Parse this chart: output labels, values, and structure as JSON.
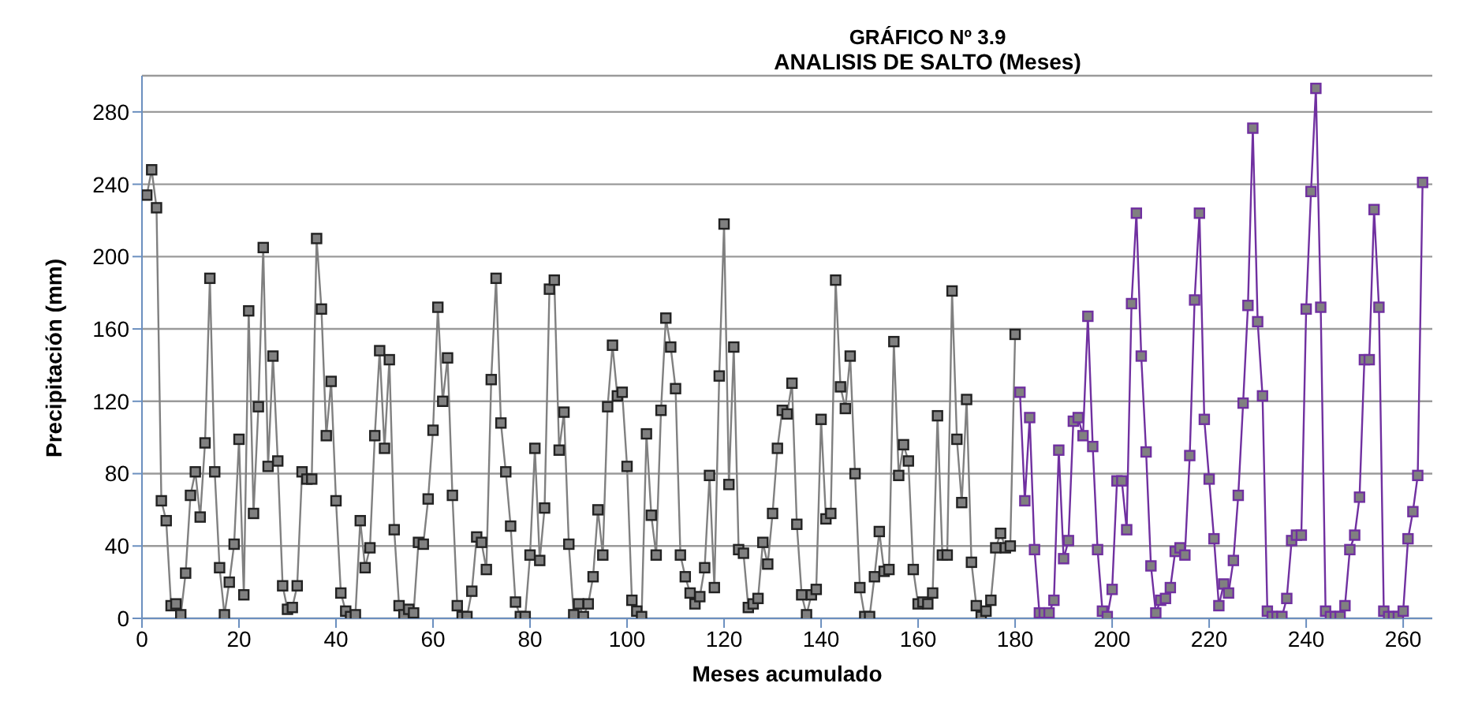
{
  "chart_data": {
    "type": "line",
    "title": "GRÁFICO  Nº 3.9",
    "subtitle": "ANALISIS DE SALTO (Meses)",
    "xlabel": "Meses acumulado",
    "ylabel": "Precipitación (mm)",
    "xlim": [
      0,
      266
    ],
    "xticks": [
      0,
      20,
      40,
      60,
      80,
      100,
      120,
      140,
      160,
      180,
      200,
      220,
      240,
      260
    ],
    "ylim": [
      0,
      300
    ],
    "yticks": [
      0,
      40,
      80,
      120,
      160,
      200,
      240,
      280
    ],
    "grid": "y",
    "marker": "square",
    "line_style": "solid",
    "series": [
      {
        "color": "#808080",
        "x": [
          1,
          2,
          3,
          4,
          5,
          6,
          7,
          8,
          9,
          10,
          11,
          12,
          13,
          14,
          15,
          16,
          17,
          18,
          19,
          20,
          21,
          22,
          23,
          24,
          25,
          26,
          27,
          28,
          29,
          30,
          31,
          32,
          33,
          34,
          35,
          36,
          37,
          38,
          39,
          40,
          41,
          42,
          43,
          44,
          45,
          46,
          47,
          48,
          49,
          50,
          51,
          52,
          53,
          54,
          55,
          56,
          57,
          58,
          59,
          60,
          61,
          62,
          63,
          64,
          65,
          66,
          67,
          68,
          69,
          70,
          71,
          72,
          73,
          74,
          75,
          76,
          77,
          78,
          79,
          80,
          81,
          82,
          83,
          84,
          85,
          86,
          87,
          88,
          89,
          90,
          91,
          92,
          93,
          94,
          95,
          96,
          97,
          98,
          99,
          100,
          101,
          102,
          103,
          104,
          105,
          106,
          107,
          108,
          109,
          110,
          111,
          112,
          113,
          114,
          115,
          116,
          117,
          118,
          119,
          120,
          121,
          122,
          123,
          124,
          125,
          126,
          127,
          128,
          129,
          130,
          131,
          132,
          133,
          134,
          135,
          136,
          137,
          138,
          139,
          140,
          141,
          142,
          143,
          144,
          145,
          146,
          147,
          148,
          149,
          150,
          151,
          152,
          153,
          154,
          155,
          156,
          157,
          158,
          159,
          160,
          161,
          162,
          163,
          164,
          165,
          166,
          167,
          168,
          169,
          170,
          171,
          172,
          173,
          174,
          175,
          176,
          177,
          178,
          179,
          180
        ],
        "values": [
          234,
          248,
          227,
          65,
          54,
          7,
          8,
          2,
          25,
          68,
          81,
          56,
          97,
          188,
          81,
          28,
          2,
          20,
          41,
          99,
          13,
          170,
          58,
          117,
          205,
          84,
          145,
          87,
          18,
          5,
          6,
          18,
          81,
          77,
          77,
          210,
          171,
          101,
          131,
          65,
          14,
          4,
          1,
          2,
          54,
          28,
          39,
          101,
          148,
          94,
          143,
          49,
          7,
          2,
          5,
          3,
          42,
          41,
          66,
          104,
          172,
          120,
          144,
          68,
          7,
          1,
          1,
          15,
          45,
          42,
          27,
          132,
          188,
          108,
          81,
          51,
          9,
          1,
          1,
          35,
          94,
          32,
          61,
          182,
          187,
          93,
          114,
          41,
          2,
          8,
          1,
          8,
          23,
          60,
          35,
          117,
          151,
          123,
          125,
          84,
          10,
          4,
          1,
          102,
          57,
          35,
          115,
          166,
          150,
          127,
          35,
          23,
          14,
          8,
          12,
          28,
          79,
          17,
          134,
          218,
          74,
          150,
          38,
          36,
          6,
          8,
          11,
          42,
          30,
          58,
          94,
          115,
          113,
          130,
          52,
          13,
          2,
          13,
          16,
          110,
          55,
          58,
          187,
          128,
          116,
          145,
          80,
          17,
          1,
          1,
          23,
          48,
          26,
          27,
          153,
          79,
          96,
          87,
          27,
          8,
          9,
          8,
          14,
          112,
          35,
          35,
          181,
          99,
          64,
          121,
          31,
          7,
          1,
          4,
          10,
          39,
          47,
          39,
          40,
          157
        ]
      },
      {
        "color": "#7030a0",
        "x": [
          181,
          182,
          183,
          184,
          185,
          186,
          187,
          188,
          189,
          190,
          191,
          192,
          193,
          194,
          195,
          196,
          197,
          198,
          199,
          200,
          201,
          202,
          203,
          204,
          205,
          206,
          207,
          208,
          209,
          210,
          211,
          212,
          213,
          214,
          215,
          216,
          217,
          218,
          219,
          220,
          221,
          222,
          223,
          224,
          225,
          226,
          227,
          228,
          229,
          230,
          231,
          232,
          233,
          234,
          235,
          236,
          237,
          238,
          239,
          240,
          241,
          242,
          243,
          244,
          245,
          246,
          247,
          248,
          249,
          250,
          251,
          252,
          253,
          254,
          255,
          256,
          257,
          258,
          259,
          260,
          261,
          262,
          263,
          264
        ],
        "values": [
          125,
          65,
          111,
          38,
          3,
          3,
          3,
          10,
          93,
          33,
          43,
          109,
          111,
          101,
          167,
          95,
          38,
          4,
          1,
          16,
          76,
          76,
          49,
          174,
          224,
          145,
          92,
          29,
          3,
          10,
          11,
          17,
          37,
          39,
          35,
          90,
          176,
          224,
          110,
          77,
          44,
          7,
          19,
          14,
          32,
          68,
          119,
          173,
          271,
          164,
          123,
          4,
          1,
          1,
          1,
          11,
          43,
          46,
          46,
          171,
          236,
          293,
          172,
          4,
          1,
          1,
          1,
          7,
          38,
          46,
          67,
          143,
          143,
          226,
          172,
          4,
          1,
          1,
          1,
          4,
          44,
          59,
          79,
          241
        ]
      }
    ]
  }
}
